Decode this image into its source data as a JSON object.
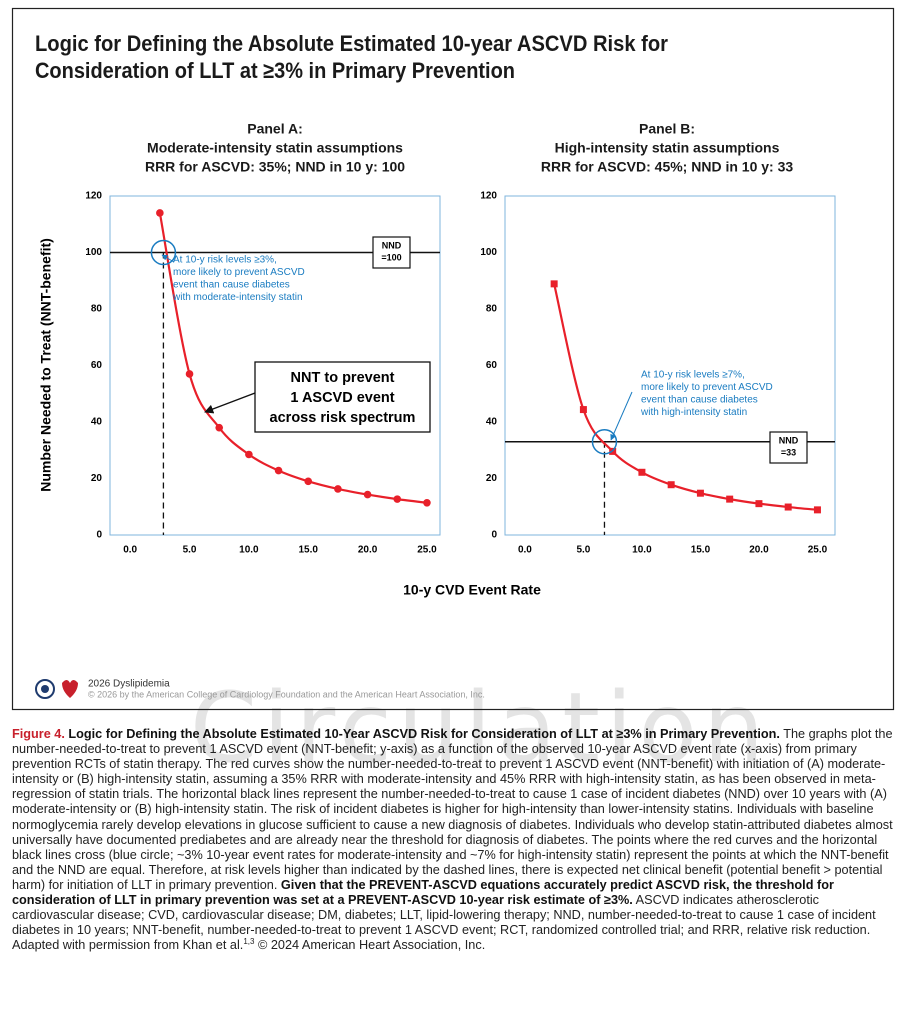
{
  "title": [
    "Logic for Defining the Absolute Estimated 10-year ASCVD Risk for",
    "Consideration of LLT at ≥3% in Primary Prevention"
  ],
  "y_label": "Number Needed to Treat (NNT-benefit)",
  "x_label": "10-y CVD Event Rate",
  "chart_data": [
    {
      "type": "line",
      "title": [
        "Panel A:",
        "Moderate-intensity statin assumptions",
        "RRR for ASCVD: 35%; NND in 10 y: 100"
      ],
      "x": [
        2.5,
        5,
        7.5,
        10,
        12.5,
        15,
        17.5,
        20,
        22.5,
        25
      ],
      "series": [
        {
          "color": "#e8202a",
          "marker": "circle",
          "values": [
            114,
            57,
            38,
            28.5,
            22.8,
            19,
            16.3,
            14.3,
            12.7,
            11.4
          ]
        }
      ],
      "xlim": [
        -1.7,
        26.1
      ],
      "xticks": [
        {
          "value": 0,
          "label": "0.0"
        },
        {
          "value": 5,
          "label": "5.0"
        },
        {
          "value": 10,
          "label": "10.0"
        },
        {
          "value": 15,
          "label": "15.0"
        },
        {
          "value": 20,
          "label": "20.0"
        },
        {
          "value": 25,
          "label": "25.0"
        }
      ],
      "ylim": [
        0,
        120
      ],
      "yticks": [
        0,
        20,
        40,
        60,
        80,
        100,
        120
      ],
      "hline": 100,
      "hline_label": [
        "NND",
        "=100"
      ],
      "vline": 2.8,
      "annotation": [
        "At 10-y risk levels ≥3%,",
        "more likely to prevent ASCVD",
        "event than cause diabetes",
        "with moderate-intensity statin"
      ],
      "callout": [
        "NNT to prevent",
        "1 ASCVD event",
        "across risk spectrum"
      ]
    },
    {
      "type": "line",
      "title": [
        "Panel B:",
        "High-intensity statin assumptions",
        "RRR for ASCVD: 45%; NND in 10 y: 33"
      ],
      "x": [
        2.5,
        5,
        7.5,
        10,
        12.5,
        15,
        17.5,
        20,
        22.5,
        25
      ],
      "series": [
        {
          "color": "#e8202a",
          "marker": "square",
          "values": [
            88.9,
            44.4,
            29.6,
            22.2,
            17.8,
            14.8,
            12.7,
            11.1,
            9.9,
            8.9
          ]
        }
      ],
      "xlim": [
        -1.7,
        26.5
      ],
      "xticks": [
        {
          "value": 0,
          "label": "0.0"
        },
        {
          "value": 5,
          "label": "5.0"
        },
        {
          "value": 10,
          "label": "10.0"
        },
        {
          "value": 15,
          "label": "15.0"
        },
        {
          "value": 20,
          "label": "20.0"
        },
        {
          "value": 25,
          "label": "25.0"
        }
      ],
      "ylim": [
        0,
        120
      ],
      "yticks": [
        0,
        20,
        40,
        60,
        80,
        100,
        120
      ],
      "hline": 33,
      "hline_label": [
        "NND",
        "=33"
      ],
      "vline": 6.8,
      "annotation": [
        "At 10-y risk levels ≥7%,",
        "more likely to prevent ASCVD",
        "event than cause diabetes",
        "with high-intensity statin"
      ]
    }
  ],
  "footer": {
    "name": "2026 Dyslipidemia",
    "copyright": "© 2026 by the American College of Cardiology Foundation and the American Heart Association, Inc."
  },
  "watermark": "Circulation",
  "caption": {
    "label": "Figure 4.",
    "title": "Logic for Defining the Absolute Estimated 10-Year ASCVD Risk for Consideration of LLT at ≥3% in Primary Prevention.",
    "body": "The graphs plot the number-needed-to-treat to prevent 1 ASCVD event (NNT-benefit; y-axis) as a function of the observed 10-year ASCVD event rate (x-axis) from primary prevention RCTs of statin therapy. The red curves show the number-needed-to-treat to prevent 1 ASCVD event (NNT-benefit) with initiation of (A) moderate-intensity or (B) high-intensity statin, assuming a 35% RRR with moderate-intensity and 45% RRR with high-intensity statin, as has been observed in meta-regression of statin trials. The horizontal black lines represent the number-needed-to-treat to cause 1 case of incident diabetes (NND) over 10 years with (A) moderate-intensity or (B) high-intensity statin. The risk of incident diabetes is higher for high-intensity than lower-intensity statins. Individuals with baseline normoglycemia rarely develop elevations in glucose sufficient to cause a new diagnosis of diabetes. Individuals who develop statin-attributed diabetes almost universally have documented prediabetes and are already near the threshold for diagnosis of diabetes. The points where the red curves and the horizontal black lines cross (blue circle; ~3% 10-year event rates for moderate-intensity and ~7% for high-intensity statin) represent the points at which the NNT-benefit and the NND are equal. Therefore, at risk levels higher than indicated by the dashed lines, there is expected net clinical benefit (potential benefit > potential harm) for initiation of LLT in primary prevention.",
    "emphasis": "Given that the PREVENT-ASCVD equations accurately predict ASCVD risk, the threshold for consideration of LLT in primary prevention was set at a PREVENT-ASCVD 10-year risk estimate of ≥3%.",
    "abbreviations": "ASCVD indicates atherosclerotic cardiovascular disease; CVD, cardiovascular disease; DM, diabetes; LLT, lipid-lowering therapy; NND, number-needed-to-treat to cause 1 case of incident diabetes in 10 years; NNT-benefit, number-needed-to-treat to prevent 1 ASCVD event; RCT, randomized controlled trial; and RRR, relative risk reduction. Adapted with permission from Khan et al.",
    "refs": "1,3",
    "credit": "© 2024 American Heart Association, Inc."
  }
}
